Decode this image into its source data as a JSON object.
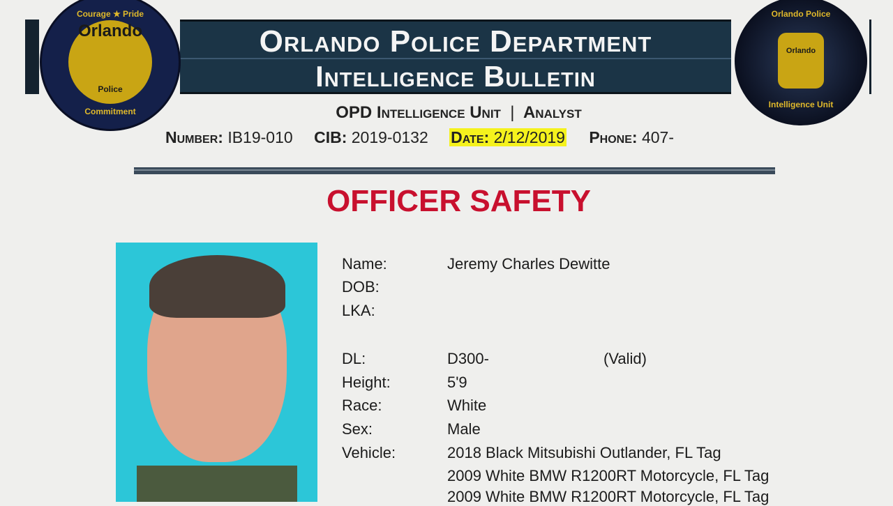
{
  "header": {
    "title": "Orlando Police Department",
    "subtitle": "Intelligence Bulletin",
    "unit": "OPD Intelligence Unit",
    "separator": "|",
    "role": "Analyst",
    "number_label": "Number:",
    "number": "IB19-010",
    "cib_label": "CIB:",
    "cib": "2019-0132",
    "date_label": "Date:",
    "date": "2/12/2019",
    "phone_label": "Phone:",
    "phone": "407-",
    "highlight_color": "#f5f21d"
  },
  "logos": {
    "left": {
      "top": "Courage ★ Pride",
      "center": "Orlando",
      "bottom_badge": "Police",
      "bottom": "Commitment"
    },
    "right": {
      "top": "Orlando Police",
      "badge": "Orlando",
      "bottom": "Intelligence Unit"
    }
  },
  "headline": {
    "text": "OFFICER SAFETY",
    "color": "#c8102e"
  },
  "subject": {
    "fields": [
      {
        "label": "Name:",
        "value": "Jeremy Charles Dewitte"
      },
      {
        "label": "DOB:",
        "value": ""
      },
      {
        "label": "LKA:",
        "value": ""
      },
      {
        "label": "DL:",
        "value": "D300-",
        "note": "(Valid)"
      },
      {
        "label": "Height:",
        "value": "5'9"
      },
      {
        "label": "Race:",
        "value": "White"
      },
      {
        "label": "Sex:",
        "value": "Male"
      },
      {
        "label": "Vehicle:",
        "value": "2018 Black Mitsubishi Outlander, FL Tag"
      }
    ],
    "vehicles_extra": [
      "2009 White BMW R1200RT Motorcycle, FL Tag",
      "2009 White BMW R1200RT Motorcycle, FL Tag"
    ]
  }
}
